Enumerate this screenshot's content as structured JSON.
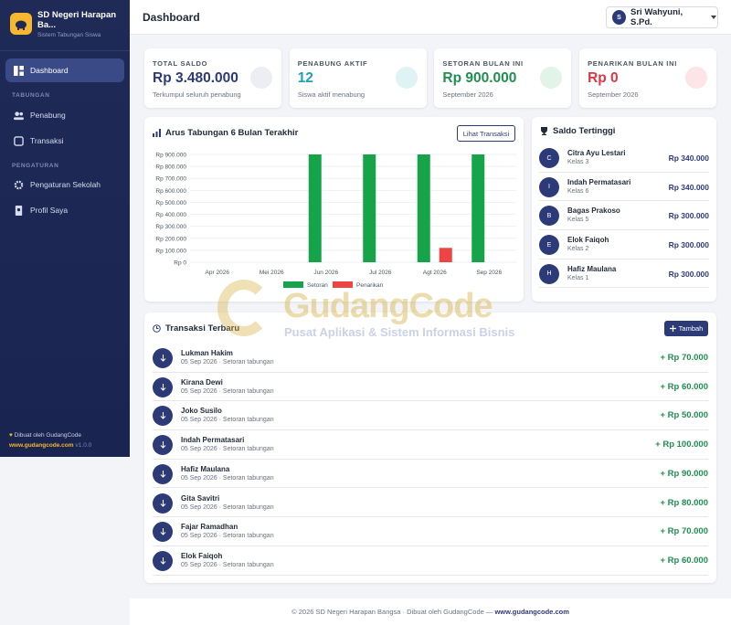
{
  "sidebar": {
    "brand": "SD Negeri Harapan Ba...",
    "subtitle": "Sistem Tabungan Siswa",
    "dashboard": "Dashboard",
    "sections": [
      {
        "title": "TABUNGAN",
        "items": [
          "Penabung",
          "Transaksi"
        ]
      },
      {
        "title": "PENGATURAN",
        "items": [
          "Pengaturan Sekolah",
          "Profil Saya"
        ]
      }
    ],
    "credit": "Dibuat oleh GudangCode",
    "link": "www.gudangcode.com",
    "version": "v1.0.0"
  },
  "header": {
    "title": "Dashboard",
    "user_initial": "S",
    "user": "Sri Wahyuni, S.Pd."
  },
  "stats": [
    {
      "label": "TOTAL SALDO",
      "value": "Rp 3.480.000",
      "note": "Terkumpul seluruh penabung"
    },
    {
      "label": "PENABUNG AKTIF",
      "value": "12",
      "note": "Siswa aktif menabung"
    },
    {
      "label": "SETORAN BULAN INI",
      "value": "Rp 900.000",
      "note": "September 2026"
    },
    {
      "label": "PENARIKAN BULAN INI",
      "value": "Rp 0",
      "note": "September 2026"
    }
  ],
  "chart_card": {
    "button": "Lihat Transaksi"
  },
  "chart_data": {
    "type": "bar",
    "title": "Arus Tabungan 6 Bulan Terakhir",
    "categories": [
      "Apr 2026",
      "Mei 2026",
      "Jun 2026",
      "Jul 2026",
      "Agt 2026",
      "Sep 2026"
    ],
    "series": [
      {
        "name": "Setoran",
        "color": "#16a34a",
        "values": [
          0,
          0,
          900000,
          900000,
          900000,
          900000
        ]
      },
      {
        "name": "Penarikan",
        "color": "#ef4444",
        "values": [
          0,
          0,
          0,
          0,
          120000,
          0
        ]
      }
    ],
    "ylim": [
      0,
      900000
    ],
    "yticks": [
      {
        "value": 0,
        "label": "Rp 0"
      },
      {
        "value": 100000,
        "label": "Rp 100.000"
      },
      {
        "value": 200000,
        "label": "Rp 200.000"
      },
      {
        "value": 300000,
        "label": "Rp 300.000"
      },
      {
        "value": 400000,
        "label": "Rp 400.000"
      },
      {
        "value": 500000,
        "label": "Rp 500.000"
      },
      {
        "value": 600000,
        "label": "Rp 600.000"
      },
      {
        "value": 700000,
        "label": "Rp 700.000"
      },
      {
        "value": 800000,
        "label": "Rp 800.000"
      },
      {
        "value": 900000,
        "label": "Rp 900.000"
      }
    ],
    "grid": true,
    "legend": "bottom"
  },
  "top_savers": {
    "title": "Saldo Tertinggi",
    "items": [
      {
        "initial": "C",
        "name": "Citra Ayu Lestari",
        "class": "Kelas 3",
        "amount": "Rp 340.000"
      },
      {
        "initial": "I",
        "name": "Indah Permatasari",
        "class": "Kelas 6",
        "amount": "Rp 340.000"
      },
      {
        "initial": "B",
        "name": "Bagas Prakoso",
        "class": "Kelas 5",
        "amount": "Rp 300.000"
      },
      {
        "initial": "E",
        "name": "Elok Faiqoh",
        "class": "Kelas 2",
        "amount": "Rp 300.000"
      },
      {
        "initial": "H",
        "name": "Hafiz Maulana",
        "class": "Kelas 1",
        "amount": "Rp 300.000"
      }
    ]
  },
  "transactions": {
    "title": "Transaksi Terbaru",
    "button": "Tambah",
    "items": [
      {
        "name": "Lukman Hakim",
        "meta": "05 Sep 2026 · Setoran tabungan",
        "amount": "+ Rp 70.000"
      },
      {
        "name": "Kirana Dewi",
        "meta": "05 Sep 2026 · Setoran tabungan",
        "amount": "+ Rp 60.000"
      },
      {
        "name": "Joko Susilo",
        "meta": "05 Sep 2026 · Setoran tabungan",
        "amount": "+ Rp 50.000"
      },
      {
        "name": "Indah Permatasari",
        "meta": "05 Sep 2026 · Setoran tabungan",
        "amount": "+ Rp 100.000"
      },
      {
        "name": "Hafiz Maulana",
        "meta": "05 Sep 2026 · Setoran tabungan",
        "amount": "+ Rp 90.000"
      },
      {
        "name": "Gita Savitri",
        "meta": "05 Sep 2026 · Setoran tabungan",
        "amount": "+ Rp 80.000"
      },
      {
        "name": "Fajar Ramadhan",
        "meta": "05 Sep 2026 · Setoran tabungan",
        "amount": "+ Rp 70.000"
      },
      {
        "name": "Elok Faiqoh",
        "meta": "05 Sep 2026 · Setoran tabungan",
        "amount": "+ Rp 60.000"
      }
    ]
  },
  "watermark": {
    "brand": "GudangCode",
    "tagline": "Pusat Aplikasi & Sistem Informasi Bisnis"
  },
  "footer": {
    "text": "© 2026 SD Negeri Harapan Bangsa · Dibuat oleh GudangCode —",
    "link": "www.gudangcode.com"
  }
}
